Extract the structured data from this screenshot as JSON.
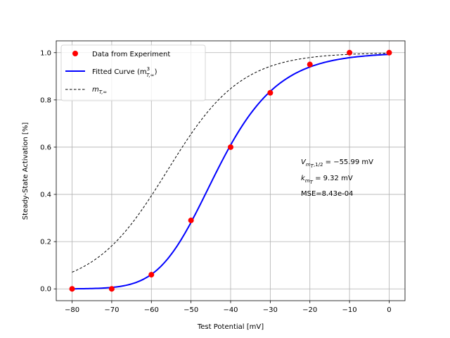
{
  "chart_data": {
    "type": "scatter",
    "title": "",
    "xlabel": "Test Potential [mV]",
    "ylabel": "Steady-State Activation [%]",
    "xlim": [
      -84,
      4
    ],
    "ylim": [
      -0.05,
      1.05
    ],
    "xticks": [
      -80,
      -70,
      -60,
      -50,
      -40,
      -30,
      -20,
      -10,
      0
    ],
    "yticks": [
      0.0,
      0.2,
      0.4,
      0.6,
      0.8,
      1.0
    ],
    "xtick_labels": [
      "−80",
      "−70",
      "−60",
      "−50",
      "−40",
      "−30",
      "−20",
      "−10",
      "0"
    ],
    "ytick_labels": [
      "0.0",
      "0.2",
      "0.4",
      "0.6",
      "0.8",
      "1.0"
    ],
    "grid": true,
    "legend_position": "upper-left",
    "series": [
      {
        "name": "Data from Experiment",
        "kind": "scatter",
        "color": "#ff0000",
        "x": [
          -80,
          -70,
          -60,
          -50,
          -40,
          -30,
          -20,
          -10,
          0
        ],
        "y": [
          0.0,
          0.0,
          0.06,
          0.29,
          0.6,
          0.83,
          0.95,
          1.0,
          1.0
        ]
      },
      {
        "name": "Fitted Curve",
        "kind": "line",
        "color": "#0000ff",
        "style": "solid",
        "model": "boltzmann_cubed",
        "v_half": -55.99,
        "k": 9.32
      },
      {
        "name": "m_T,∞",
        "kind": "line",
        "color": "#000000",
        "style": "dashed",
        "model": "boltzmann",
        "v_half": -55.99,
        "k": 9.32
      }
    ],
    "annotations": {
      "vhalf_prefix": "V",
      "vhalf_value": " = −55.99 mV",
      "k_prefix": "k",
      "k_value": " = 9.32 mV",
      "mse": "MSE=8.43e-04"
    },
    "legend": {
      "data_label": "Data from Experiment",
      "fit_label": "Fitted Curve  (m",
      "fit_suffix": ")",
      "minf_label": "m"
    }
  }
}
